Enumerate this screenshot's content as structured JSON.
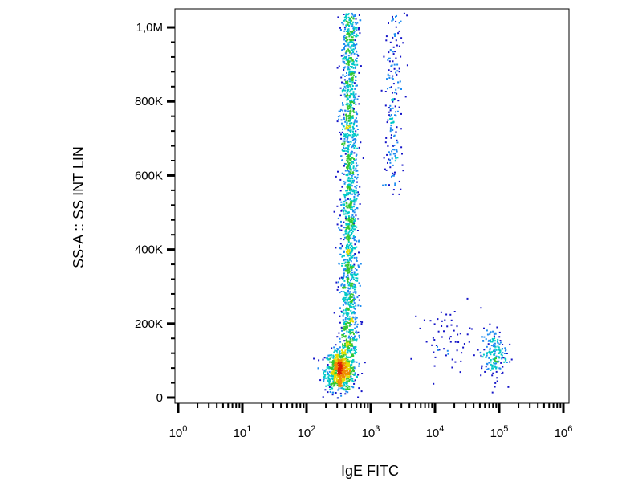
{
  "chart_data": {
    "type": "scatter",
    "title": "",
    "xlabel": "IgE FITC",
    "ylabel": "SS-A :: SS INT LIN",
    "x_scale": "log",
    "x_range": [
      1,
      1000000
    ],
    "y_range": [
      0,
      1050000
    ],
    "grid": false,
    "density_coloring": true,
    "x_ticks": [
      {
        "value": 1,
        "base": "10",
        "exp": "0"
      },
      {
        "value": 10,
        "base": "10",
        "exp": "1"
      },
      {
        "value": 100,
        "base": "10",
        "exp": "2"
      },
      {
        "value": 1000,
        "base": "10",
        "exp": "3"
      },
      {
        "value": 10000,
        "base": "10",
        "exp": "4"
      },
      {
        "value": 100000,
        "base": "10",
        "exp": "5"
      },
      {
        "value": 1000000,
        "base": "10",
        "exp": "6"
      }
    ],
    "y_ticks": [
      {
        "value": 0,
        "label": "0"
      },
      {
        "value": 200000,
        "label": "200K"
      },
      {
        "value": 400000,
        "label": "400K"
      },
      {
        "value": 600000,
        "label": "600K"
      },
      {
        "value": 800000,
        "label": "800K"
      },
      {
        "value": 1000000,
        "label": "1,0M"
      }
    ],
    "populations": [
      {
        "name": "",
        "x_center": 330,
        "x_spread_decades": 0.12,
        "y_center": 75000,
        "y_spread": 28000,
        "count": 700
      },
      {
        "name": "",
        "x_center": 450,
        "x_spread_decades": 0.07,
        "y_min": 120000,
        "y_max": 1040000,
        "count": 1500
      },
      {
        "name": "",
        "x_center": 2200,
        "x_spread_decades": 0.08,
        "y_min": 550000,
        "y_max": 1040000,
        "count": 180
      },
      {
        "name": "",
        "x_center": 15000,
        "x_spread_decades": 0.2,
        "y_center": 160000,
        "y_spread": 40000,
        "count": 60
      },
      {
        "name": "",
        "x_center": 80000,
        "x_spread_decades": 0.1,
        "y_center": 120000,
        "y_spread": 35000,
        "count": 170
      }
    ],
    "density_colors": [
      "#1414c8",
      "#1e8cf0",
      "#00c8c8",
      "#32c832",
      "#e6dc00",
      "#f08c00",
      "#dc1e00"
    ]
  }
}
